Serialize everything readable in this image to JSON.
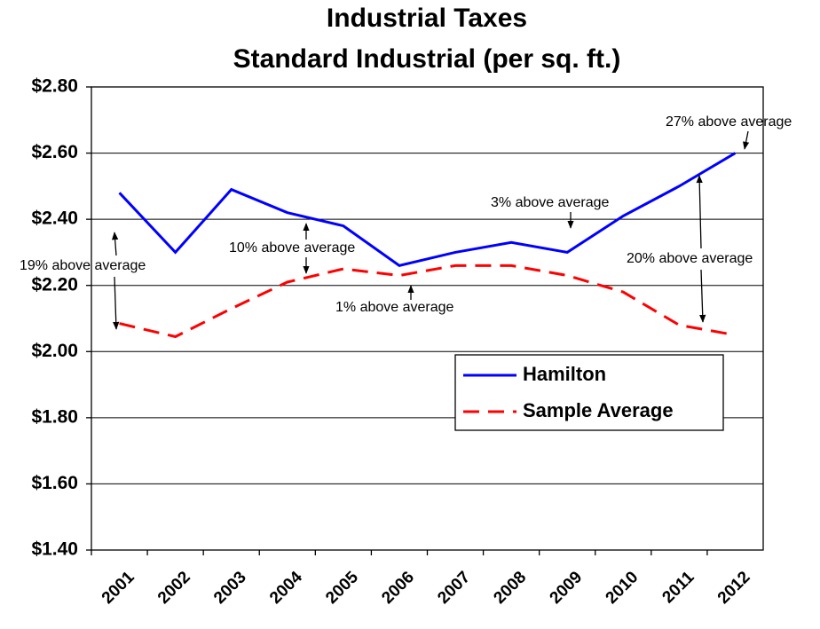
{
  "chart_data": {
    "type": "line",
    "title": "Industrial Taxes",
    "subtitle": "Standard Industrial (per sq. ft.)",
    "categories": [
      "2001",
      "2002",
      "2003",
      "2004",
      "2005",
      "2006",
      "2007",
      "2008",
      "2009",
      "2010",
      "2011",
      "2012"
    ],
    "series": [
      {
        "name": "Hamilton",
        "color": "#0000ff",
        "dash": "solid",
        "values": [
          2.48,
          2.3,
          2.49,
          2.42,
          2.38,
          2.26,
          2.3,
          2.33,
          2.3,
          2.41,
          2.5,
          2.6
        ]
      },
      {
        "name": "Sample Average",
        "color": "#ff0000",
        "dash": "dashed",
        "values": [
          2.085,
          2.045,
          2.13,
          2.21,
          2.25,
          2.23,
          2.26,
          2.26,
          2.23,
          2.18,
          2.08,
          2.05
        ]
      }
    ],
    "ylim": [
      1.4,
      2.8
    ],
    "yticks": [
      {
        "value": 1.4,
        "label": "$1.40"
      },
      {
        "value": 1.6,
        "label": "$1.60"
      },
      {
        "value": 1.8,
        "label": "$1.80"
      },
      {
        "value": 2.0,
        "label": "$2.00"
      },
      {
        "value": 2.2,
        "label": "$2.20"
      },
      {
        "value": 2.4,
        "label": "$2.40"
      },
      {
        "value": 2.6,
        "label": "$2.60"
      },
      {
        "value": 2.8,
        "label": "$2.80"
      }
    ],
    "grid": true,
    "legend": "lower right",
    "annotations": [
      "27% above average",
      "3% above average",
      "10% above average",
      "19% above average",
      "20% above average",
      "1% above average"
    ]
  }
}
